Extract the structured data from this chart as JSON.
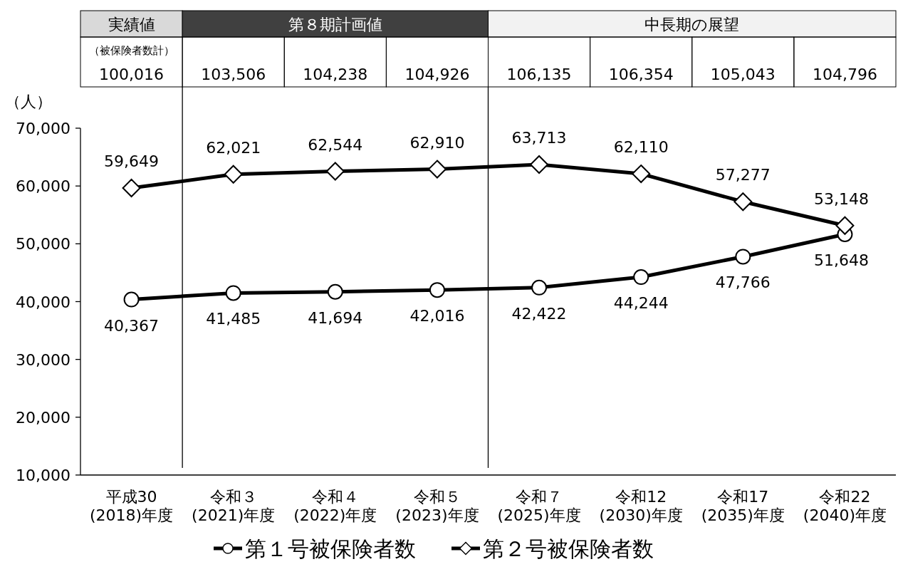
{
  "chart_data": {
    "type": "line",
    "ylabel": "（人）",
    "categories": [
      "平成30\n(2018)年度",
      "令和３\n(2021)年度",
      "令和４\n(2022)年度",
      "令和５\n(2023)年度",
      "令和７\n(2025)年度",
      "令和12\n(2030)年度",
      "令和17\n(2035)年度",
      "令和22\n(2040)年度"
    ],
    "series": [
      {
        "name": "第１号被保険者数",
        "color": "#000000",
        "marker": "circle",
        "values": [
          40367,
          41485,
          41694,
          42016,
          42422,
          44244,
          47766,
          51648
        ],
        "value_labels": [
          "40,367",
          "41,485",
          "41,694",
          "42,016",
          "42,422",
          "44,244",
          "47,766",
          "51,648"
        ]
      },
      {
        "name": "第２号被保険者数",
        "color": "#000000",
        "marker": "diamond",
        "values": [
          59649,
          62021,
          62544,
          62910,
          63713,
          62110,
          57277,
          53148
        ],
        "value_labels": [
          "59,649",
          "62,021",
          "62,544",
          "62,910",
          "63,713",
          "62,110",
          "57,277",
          "53,148"
        ]
      }
    ],
    "totals": [
      "100,016",
      "103,506",
      "104,238",
      "104,926",
      "106,135",
      "106,354",
      "105,043",
      "104,796"
    ],
    "annotations": [
      "実績値",
      "第８期計画値",
      "中長期の展望",
      "（被保険者数計）"
    ],
    "ylim": [
      10000,
      70000
    ],
    "yticks": [
      {
        "value": 10000,
        "label": "10,000"
      },
      {
        "value": 20000,
        "label": "20,000"
      },
      {
        "value": 30000,
        "label": "30,000"
      },
      {
        "value": 40000,
        "label": "40,000"
      },
      {
        "value": 50000,
        "label": "50,000"
      },
      {
        "value": 60000,
        "label": "60,000"
      },
      {
        "value": 70000,
        "label": "70,000"
      }
    ],
    "grid": false,
    "legend": "bottom",
    "line_style": "solid"
  }
}
